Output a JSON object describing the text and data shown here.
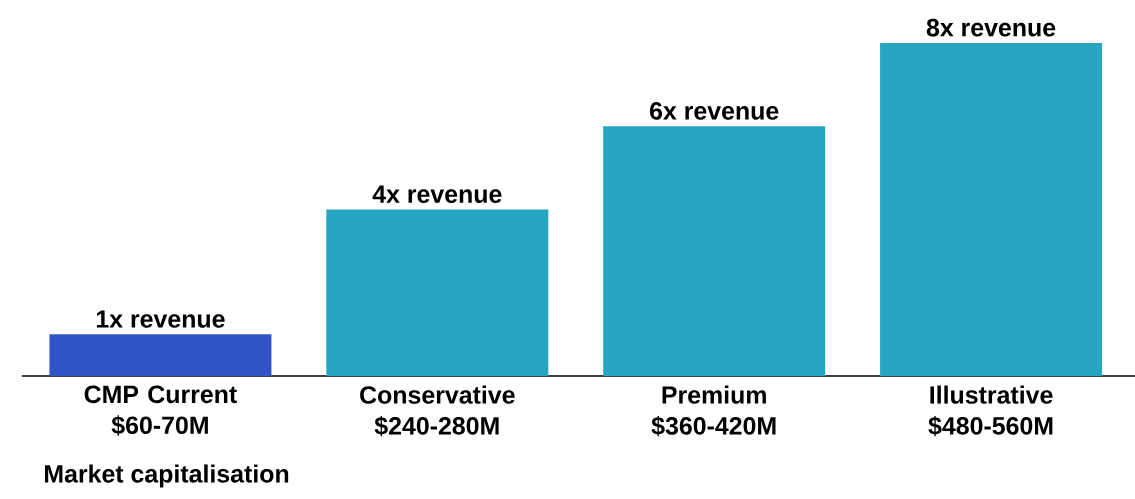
{
  "chart_data": {
    "type": "bar",
    "categories": [
      "CMP Current $60-70M",
      "Conservative $240-280M",
      "Premium $360-420M",
      "Illustrative $480-560M"
    ],
    "values": [
      1,
      4,
      6,
      8
    ],
    "value_labels": [
      "1x revenue",
      "4x revenue",
      "6x revenue",
      "8x revenue"
    ],
    "colors": [
      "#3154c4",
      "#27a6c4",
      "#27a6c4",
      "#27a6c4"
    ],
    "xlabel": "Market capitalisation"
  }
}
